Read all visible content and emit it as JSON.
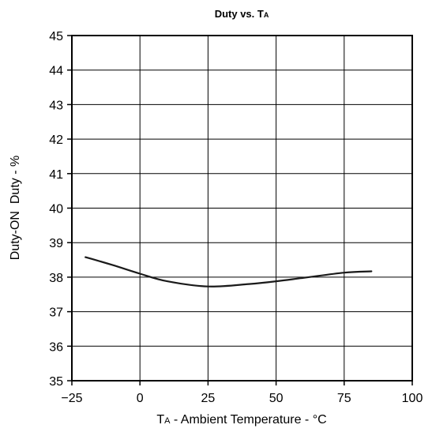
{
  "chart_data": {
    "type": "line",
    "title": "Duty vs. TA",
    "title_parts": {
      "main": "Duty vs. T",
      "sub": "A"
    },
    "xlabel": "TA - Ambient Temperature - °C",
    "xlabel_parts": {
      "pre": "T",
      "sub": "A",
      "post": " - Ambient Temperature - °C"
    },
    "ylabel": "Duty-ON  Duty - %",
    "xlim": [
      -25,
      100
    ],
    "ylim": [
      35,
      45
    ],
    "x_ticks": [
      -25,
      0,
      25,
      50,
      75,
      100
    ],
    "x_tick_labels": [
      "−25",
      "0",
      "25",
      "50",
      "75",
      "100"
    ],
    "y_ticks": [
      35,
      36,
      37,
      38,
      39,
      40,
      41,
      42,
      43,
      44,
      45
    ],
    "y_tick_labels": [
      "35",
      "36",
      "37",
      "38",
      "39",
      "40",
      "41",
      "42",
      "43",
      "44",
      "45"
    ],
    "grid": true,
    "series": [
      {
        "x": [
          -20,
          -10,
          0,
          10,
          25,
          40,
          50,
          60,
          75,
          85
        ],
        "y": [
          38.58,
          38.35,
          38.1,
          37.88,
          37.73,
          37.8,
          37.88,
          37.98,
          38.13,
          38.17
        ],
        "color": "#1a1a1a"
      }
    ]
  }
}
